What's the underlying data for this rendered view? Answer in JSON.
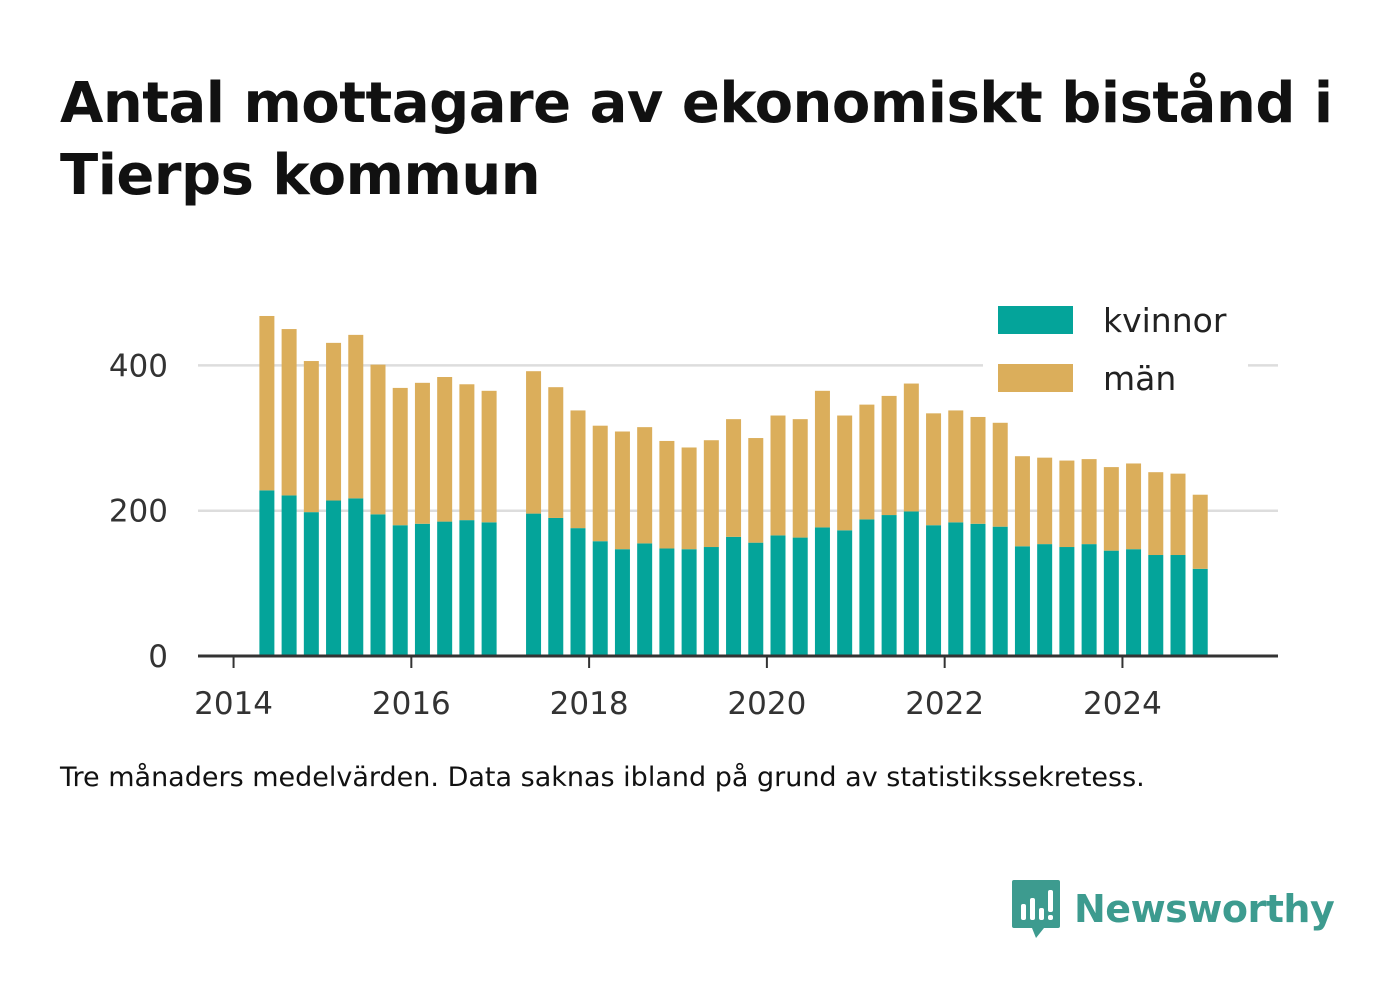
{
  "title": "Antal mottagare av ekonomiskt bistånd i Tierps kommun",
  "note": "Tre månaders medelvärden. Data saknas ibland på grund av statistikssekretess.",
  "brand": {
    "name": "Newsworthy",
    "color": "#3d9b8f",
    "icon": "newsworthy-logo-icon"
  },
  "colors": {
    "kvinnor": "#04a49a",
    "man": "#dbae5b",
    "grid": "#dddddd",
    "axis": "#333333"
  },
  "legend": [
    {
      "label": "kvinnor",
      "color": "#04a49a"
    },
    {
      "label": "män",
      "color": "#dbae5b"
    }
  ],
  "chart_data": {
    "type": "bar",
    "stacked": true,
    "title": "Antal mottagare av ekonomiskt bistånd i Tierps kommun",
    "xlabel": "",
    "ylabel": "",
    "ylim": [
      0,
      490
    ],
    "xlim": [
      2013.6,
      2025.75
    ],
    "y_ticks": [
      0,
      200,
      400
    ],
    "x_ticks": [
      2014,
      2016,
      2018,
      2020,
      2022,
      2024
    ],
    "grid": true,
    "legend_position": "top-right",
    "x": [
      2014.375,
      2014.625,
      2014.875,
      2015.125,
      2015.375,
      2015.625,
      2015.875,
      2016.125,
      2016.375,
      2016.625,
      2016.875,
      2017.375,
      2017.625,
      2017.875,
      2018.125,
      2018.375,
      2018.625,
      2018.875,
      2019.125,
      2019.375,
      2019.625,
      2019.875,
      2020.125,
      2020.375,
      2020.625,
      2020.875,
      2021.125,
      2021.375,
      2021.625,
      2021.875,
      2022.125,
      2022.375,
      2022.625,
      2022.875,
      2023.125,
      2023.375,
      2023.625,
      2023.875,
      2024.125,
      2024.375,
      2024.625,
      2024.875
    ],
    "series": [
      {
        "name": "kvinnor",
        "values": [
          228,
          221,
          198,
          214,
          217,
          195,
          180,
          182,
          185,
          187,
          184,
          196,
          190,
          176,
          158,
          147,
          155,
          148,
          147,
          150,
          164,
          156,
          166,
          163,
          177,
          173,
          188,
          194,
          199,
          180,
          184,
          182,
          178,
          151,
          154,
          150,
          154,
          145,
          147,
          139,
          139,
          120
        ]
      },
      {
        "name": "män",
        "values": [
          240,
          229,
          208,
          217,
          225,
          206,
          189,
          194,
          199,
          187,
          181,
          196,
          180,
          162,
          159,
          162,
          160,
          148,
          140,
          147,
          162,
          144,
          165,
          163,
          188,
          158,
          158,
          164,
          176,
          154,
          154,
          147,
          143,
          124,
          119,
          119,
          117,
          115,
          118,
          114,
          112,
          102
        ]
      }
    ]
  }
}
